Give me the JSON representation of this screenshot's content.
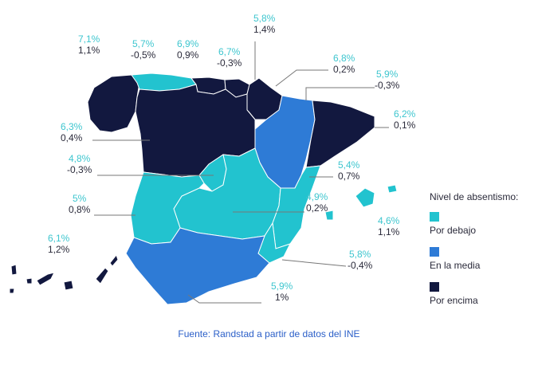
{
  "colors": {
    "below": "#22c3cf",
    "average": "#2e7bd6",
    "above": "#12183f",
    "rate_text": "#3ec6cf",
    "delta_text": "#2a2a3a",
    "leader": "#777777",
    "border": "#ffffff",
    "source_text": "#2b5fc8"
  },
  "regions": [
    {
      "name": "galicia",
      "category": "above",
      "rate": "7,1%",
      "delta": "1,1%"
    },
    {
      "name": "asturias",
      "category": "below",
      "rate": "5,7%",
      "delta": "-0,5%"
    },
    {
      "name": "cantabria",
      "category": "above",
      "rate": "6,9%",
      "delta": "0,9%"
    },
    {
      "name": "pais-vasco",
      "category": "above",
      "rate": "6,7%",
      "delta": "-0,3%"
    },
    {
      "name": "navarra",
      "category": "above",
      "rate": "5,8%",
      "delta": "1,4%"
    },
    {
      "name": "la-rioja",
      "category": "below",
      "rate": "6,8%",
      "delta": "0,2%"
    },
    {
      "name": "aragon",
      "category": "average",
      "rate": "5,9%",
      "delta": "-0,3%"
    },
    {
      "name": "cataluna",
      "category": "above",
      "rate": "6,2%",
      "delta": "0,1%"
    },
    {
      "name": "castilla-y-leon",
      "category": "above",
      "rate": "6,3%",
      "delta": "0,4%"
    },
    {
      "name": "madrid",
      "category": "below",
      "rate": "4,8%",
      "delta": "-0,3%"
    },
    {
      "name": "valencia",
      "category": "below",
      "rate": "5,4%",
      "delta": "0,7%"
    },
    {
      "name": "castilla-la-mancha",
      "category": "below",
      "rate": "4,9%",
      "delta": "0,2%"
    },
    {
      "name": "baleares",
      "category": "below",
      "rate": "4,6%",
      "delta": "1,1%"
    },
    {
      "name": "extremadura",
      "category": "below",
      "rate": "5%",
      "delta": "0,8%"
    },
    {
      "name": "murcia",
      "category": "below",
      "rate": "5,8%",
      "delta": "-0,4%"
    },
    {
      "name": "andalucia",
      "category": "average",
      "rate": "5,9%",
      "delta": "1%"
    },
    {
      "name": "canarias",
      "category": "above",
      "rate": "6,1%",
      "delta": "1,2%"
    }
  ],
  "legend": {
    "title": "Nivel de absentismo:",
    "items": [
      {
        "key": "below",
        "label": "Por debajo"
      },
      {
        "key": "average",
        "label": "En la media"
      },
      {
        "key": "above",
        "label": "Por encima"
      }
    ]
  },
  "source": "Fuente: Randstad a partir de datos del INE"
}
